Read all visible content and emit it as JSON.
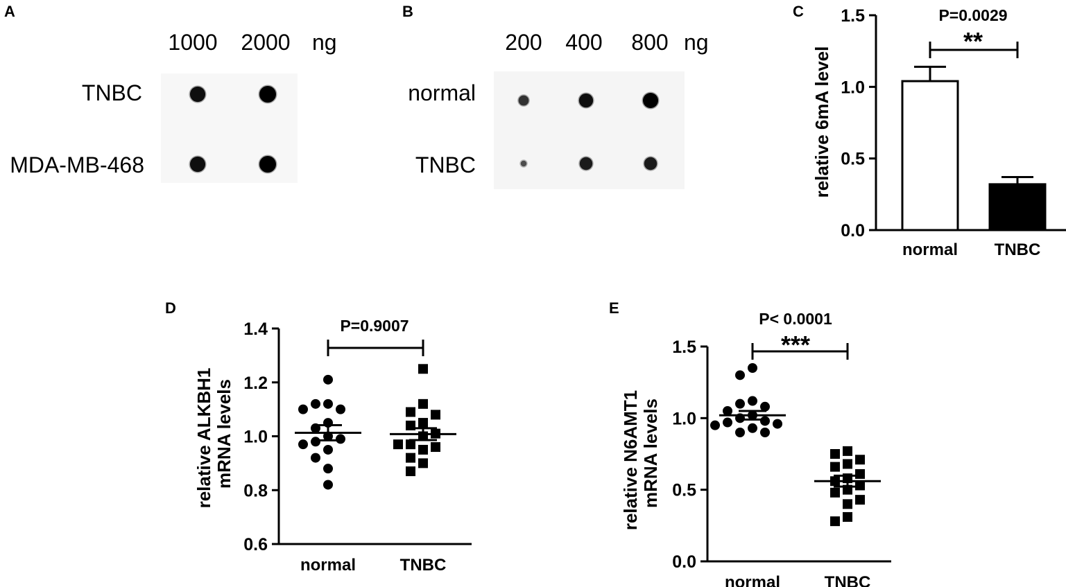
{
  "panel_labels": [
    "A",
    "B",
    "C",
    "D",
    "E"
  ],
  "blot_a": {
    "label": "A",
    "unit": "ng",
    "amounts": [
      "1000",
      "2000"
    ],
    "samples": [
      "TNBC",
      "MDA-MB-468"
    ],
    "spot_intensity": [
      [
        0.85,
        1.0
      ],
      [
        0.85,
        1.0
      ]
    ]
  },
  "blot_b": {
    "label": "B",
    "unit": "ng",
    "amounts": [
      "200",
      "400",
      "800"
    ],
    "samples": [
      "normal",
      "TNBC"
    ],
    "spot_intensity": [
      [
        0.45,
        0.85,
        1.0
      ],
      [
        0.15,
        0.7,
        0.7
      ]
    ]
  },
  "chart_data": [
    {
      "panel": "C",
      "type": "bar",
      "categories": [
        "normal",
        "TNBC"
      ],
      "values": [
        1.04,
        0.32
      ],
      "errors": [
        0.1,
        0.05
      ],
      "fills": [
        "#ffffff",
        "#000000"
      ],
      "ylabel": "relative 6mA level",
      "ylim": [
        0,
        1.5
      ],
      "yticks": [
        0,
        0.5,
        1.0,
        1.5
      ],
      "ytick_labels": [
        "0.0",
        "0.5",
        "1.0",
        "1.5"
      ],
      "pvalue": "P=0.0029",
      "stars": "**"
    },
    {
      "panel": "D",
      "type": "scatter",
      "categories": [
        "normal",
        "TNBC"
      ],
      "series": [
        {
          "name": "normal",
          "marker": "circle",
          "mean": 1.013,
          "sem": 0.028,
          "values": [
            1.21,
            1.12,
            1.12,
            1.1,
            1.1,
            1.05,
            1.03,
            1.0,
            0.99,
            0.98,
            0.97,
            0.95,
            0.92,
            0.88,
            0.82
          ]
        },
        {
          "name": "TNBC",
          "marker": "square",
          "mean": 1.008,
          "sem": 0.022,
          "values": [
            1.25,
            1.12,
            1.09,
            1.08,
            1.05,
            1.04,
            1.01,
            1.0,
            0.97,
            0.97,
            0.96,
            0.95,
            0.92,
            0.9,
            0.87
          ]
        }
      ],
      "ylabel_lines": [
        "relative ALKBH1",
        "mRNA levels"
      ],
      "ylim": [
        0.6,
        1.4
      ],
      "yticks": [
        0.6,
        0.8,
        1.0,
        1.2,
        1.4
      ],
      "ytick_labels": [
        "0.6",
        "0.8",
        "1.0",
        "1.2",
        "1.4"
      ],
      "pvalue": "P=0.9007",
      "stars": ""
    },
    {
      "panel": "E",
      "type": "scatter",
      "categories": [
        "normal",
        "TNBC"
      ],
      "series": [
        {
          "name": "normal",
          "marker": "circle",
          "mean": 1.02,
          "sem": 0.03,
          "values": [
            1.35,
            1.3,
            1.12,
            1.1,
            1.08,
            1.05,
            1.02,
            1.0,
            0.98,
            0.97,
            0.96,
            0.95,
            0.93,
            0.9,
            0.9
          ]
        },
        {
          "name": "TNBC",
          "marker": "square",
          "mean": 0.56,
          "sem": 0.038,
          "values": [
            0.77,
            0.75,
            0.71,
            0.68,
            0.66,
            0.61,
            0.58,
            0.56,
            0.53,
            0.5,
            0.48,
            0.43,
            0.4,
            0.31,
            0.28
          ]
        }
      ],
      "ylabel_lines": [
        "relative N6AMT1",
        "mRNA levels"
      ],
      "ylim": [
        0.0,
        1.5
      ],
      "yticks": [
        0.0,
        0.5,
        1.0,
        1.5
      ],
      "ytick_labels": [
        "0.0",
        "0.5",
        "1.0",
        "1.5"
      ],
      "pvalue": "P< 0.0001",
      "stars": "***"
    }
  ]
}
